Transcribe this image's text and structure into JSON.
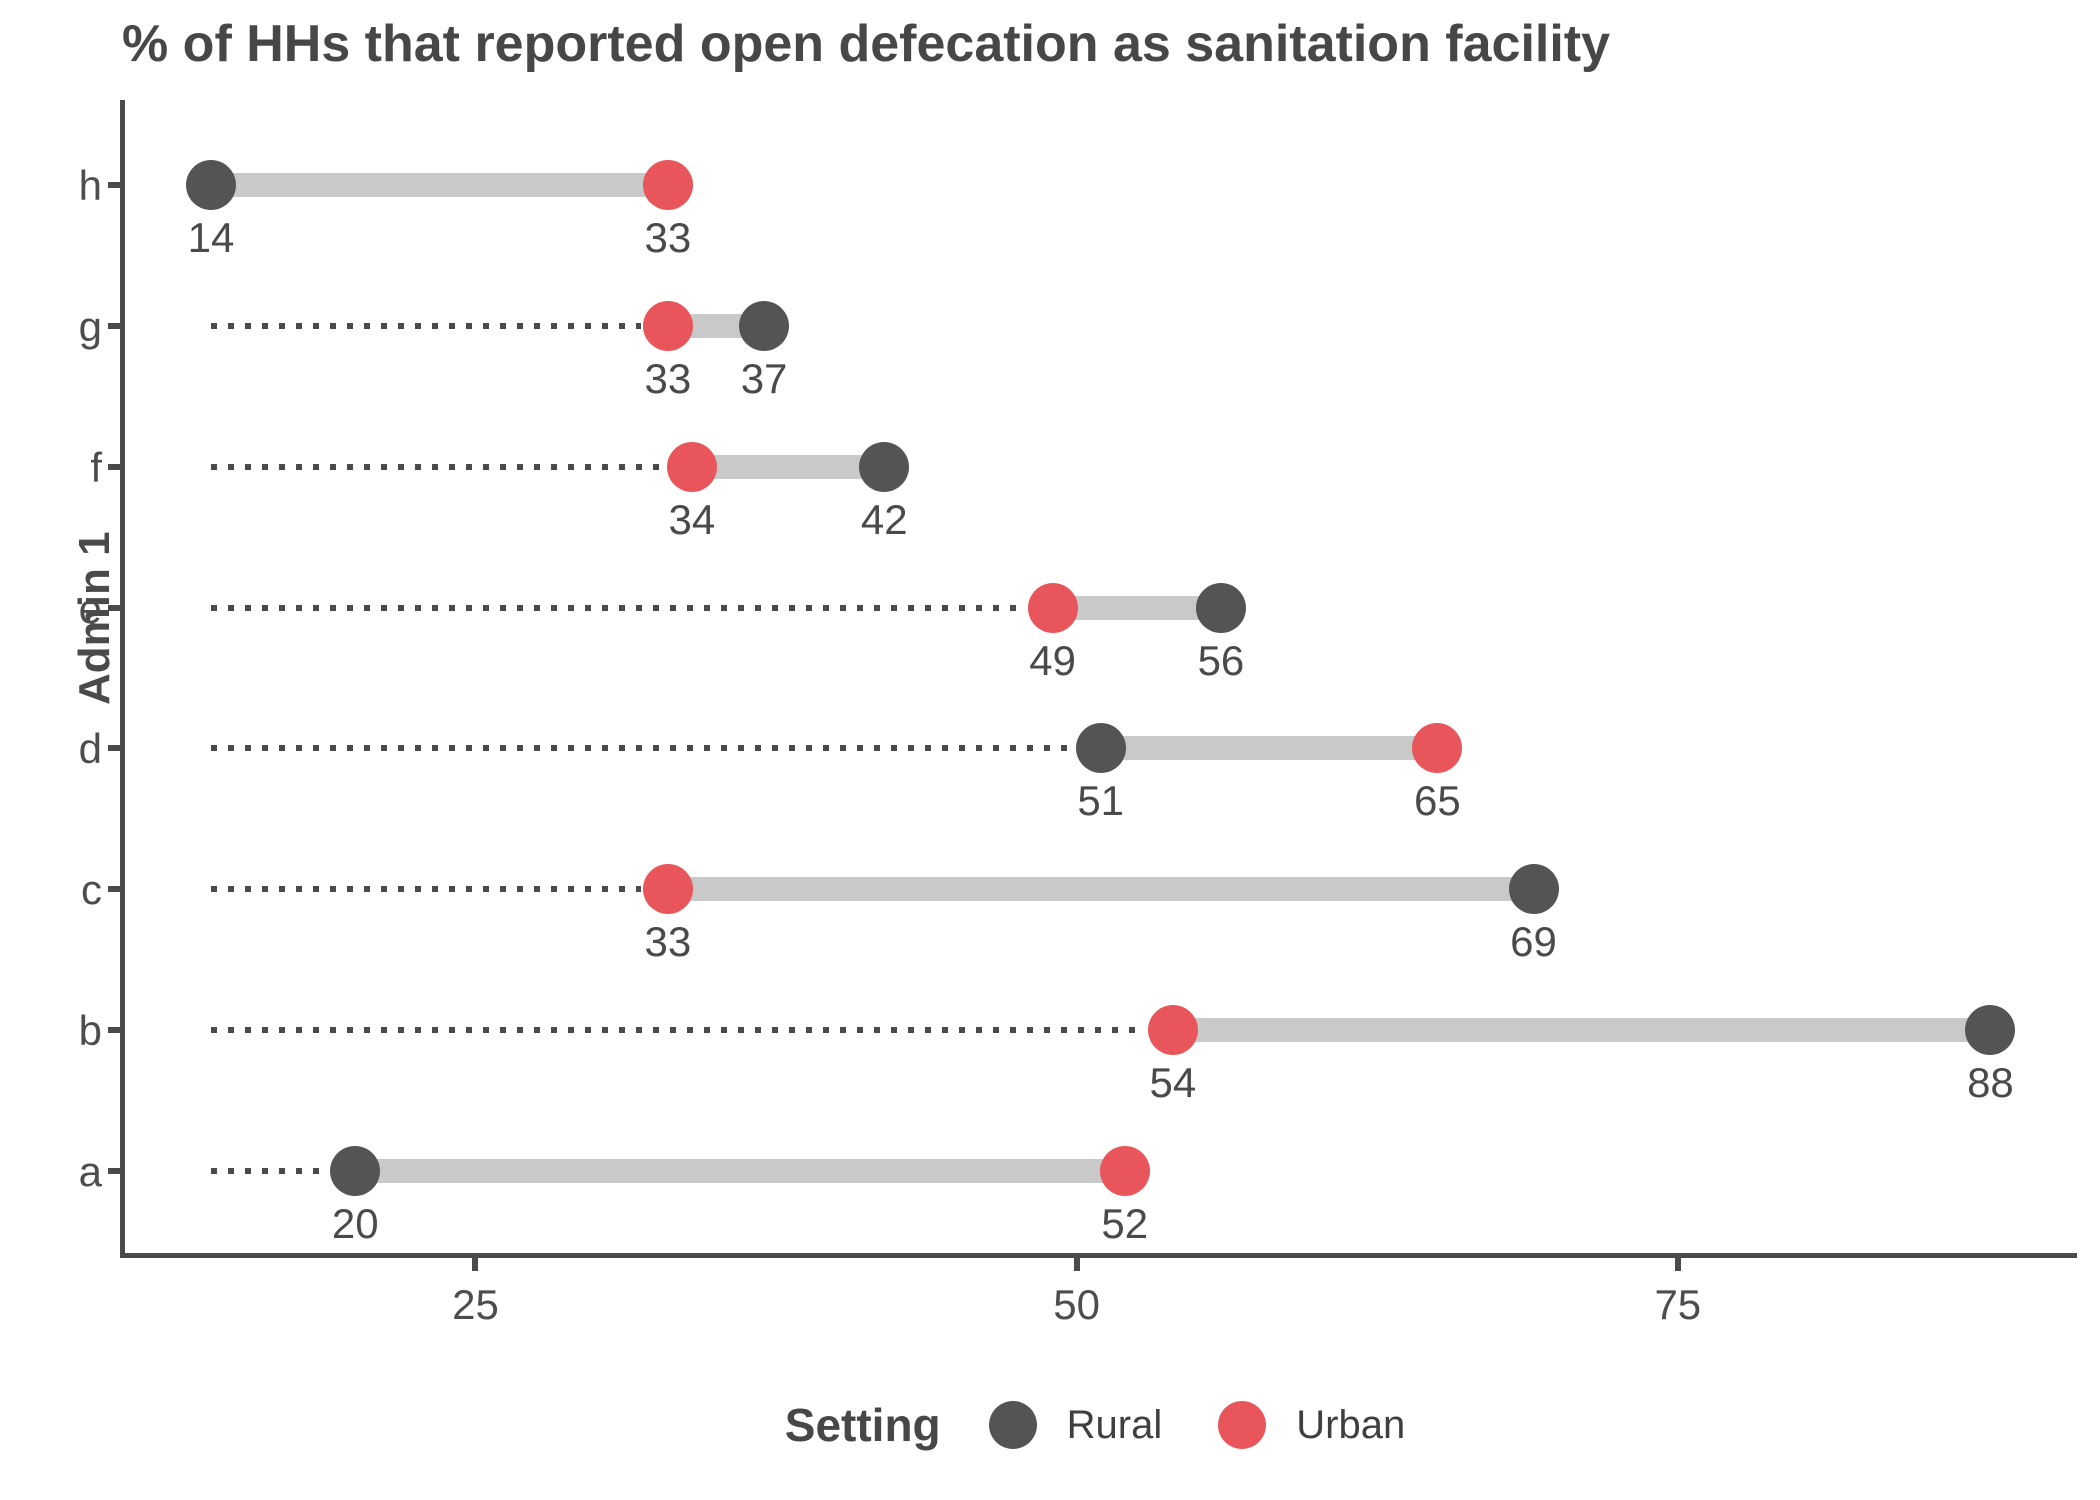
{
  "title": "% of HHs that reported open defecation as sanitation facility",
  "y_axis_label": "Admin 1",
  "legend": {
    "title": "Setting",
    "items": [
      {
        "label": "Rural",
        "color": "#545456"
      },
      {
        "label": "Urban",
        "color": "#e8555a"
      }
    ]
  },
  "colors": {
    "rural": "#545456",
    "urban": "#e8555a",
    "connector": "#c9c9c9",
    "leader": "#4a4a4a",
    "axis": "#4a4a4a",
    "text": "#4d4d4d",
    "title": "#474747"
  },
  "chart_data": {
    "type": "dumbbell",
    "title": "% of HHs that reported open defecation as sanitation facility",
    "xlabel": "",
    "ylabel": "Admin 1",
    "legend_title": "Setting",
    "legend_position": "bottom",
    "grid": false,
    "categories_top_to_bottom": [
      "h",
      "g",
      "f",
      "e",
      "d",
      "c",
      "b",
      "a"
    ],
    "series": [
      {
        "name": "Rural",
        "color": "#545456",
        "values": [
          14,
          37,
          42,
          56,
          51,
          69,
          88,
          20
        ]
      },
      {
        "name": "Urban",
        "color": "#e8555a",
        "values": [
          33,
          33,
          34,
          49,
          65,
          33,
          54,
          52
        ]
      }
    ],
    "rows": [
      {
        "category": "h",
        "rural": 14,
        "urban": 33
      },
      {
        "category": "g",
        "rural": 37,
        "urban": 33
      },
      {
        "category": "f",
        "rural": 42,
        "urban": 34
      },
      {
        "category": "e",
        "rural": 56,
        "urban": 49
      },
      {
        "category": "d",
        "rural": 51,
        "urban": 65
      },
      {
        "category": "c",
        "rural": 69,
        "urban": 33
      },
      {
        "category": "b",
        "rural": 88,
        "urban": 54
      },
      {
        "category": "a",
        "rural": 20,
        "urban": 52
      }
    ],
    "x_ticks": [
      25,
      50,
      75
    ],
    "axis_range": [
      10.3,
      91.6
    ],
    "leader_line": "dotted from global minimum value to each row's nearer point"
  }
}
